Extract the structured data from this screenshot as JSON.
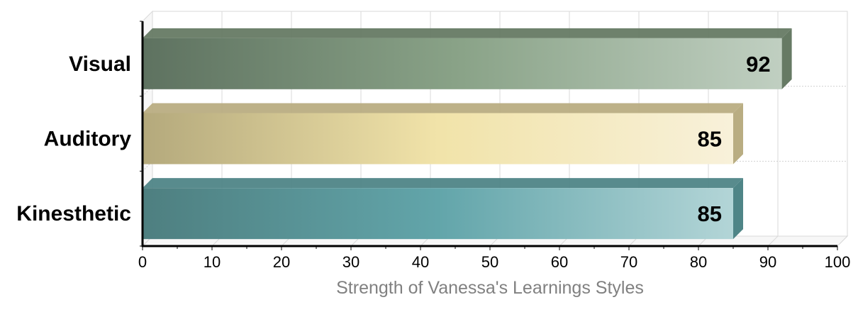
{
  "chart_data": {
    "type": "bar",
    "orientation": "horizontal",
    "style": "3d",
    "categories": [
      "Visual",
      "Auditory",
      "Kinesthetic"
    ],
    "values": [
      92,
      85,
      85
    ],
    "colors": [
      {
        "dark": "#5e7260",
        "mid": "#8aa388",
        "light": "#c0cfc1",
        "side": "#667a64"
      },
      {
        "dark": "#b4a97c",
        "mid": "#f1e3a9",
        "light": "#f8f1da",
        "side": "#b9ad82"
      },
      {
        "dark": "#4e7f80",
        "mid": "#62a5aa",
        "light": "#b3d5d7",
        "side": "#4f8587"
      }
    ],
    "xlabel": "Strength of Vanessa's Learnings Styles",
    "ylabel": "",
    "xlim": [
      0,
      100
    ],
    "xticks": [
      0,
      10,
      20,
      30,
      40,
      50,
      60,
      70,
      80,
      90,
      100
    ],
    "grid": true,
    "data_labels": true,
    "legend": "none"
  }
}
